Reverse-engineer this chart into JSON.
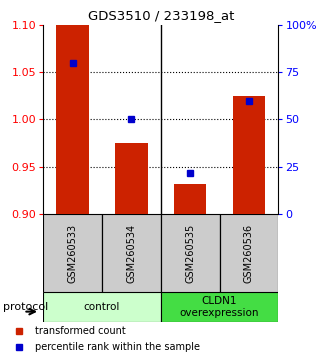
{
  "title": "GDS3510 / 233198_at",
  "samples": [
    "GSM260533",
    "GSM260534",
    "GSM260535",
    "GSM260536"
  ],
  "transformed_count": [
    1.1,
    0.975,
    0.932,
    1.025
  ],
  "percentile_rank": [
    80,
    50,
    22,
    60
  ],
  "left_ylim": [
    0.9,
    1.1
  ],
  "left_yticks": [
    0.9,
    0.95,
    1.0,
    1.05,
    1.1
  ],
  "right_ylim": [
    0,
    100
  ],
  "right_yticks": [
    0,
    25,
    50,
    75,
    100
  ],
  "right_yticklabels": [
    "0",
    "25",
    "50",
    "75",
    "100%"
  ],
  "bar_color": "#cc2200",
  "dot_color": "#0000cc",
  "bar_width": 0.55,
  "groups": [
    {
      "label": "control",
      "samples": [
        0,
        1
      ],
      "color": "#ccffcc"
    },
    {
      "label": "CLDN1\noverexpression",
      "samples": [
        2,
        3
      ],
      "color": "#44dd44"
    }
  ],
  "protocol_label": "protocol",
  "legend_items": [
    {
      "color": "#cc2200",
      "label": "transformed count"
    },
    {
      "color": "#0000cc",
      "label": "percentile rank within the sample"
    }
  ],
  "panel_color": "#cccccc",
  "dot_size": 5
}
